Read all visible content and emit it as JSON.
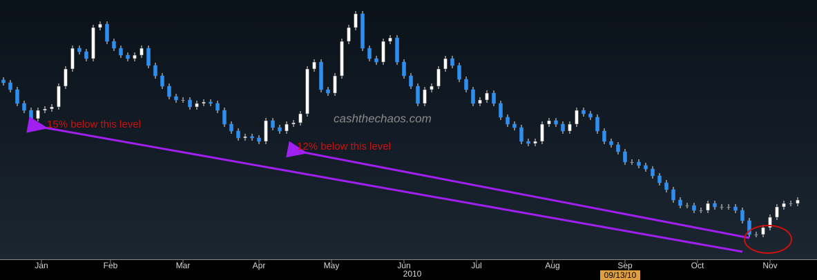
{
  "chart_data": {
    "type": "candlestick",
    "open": [
      290,
      286,
      276,
      256,
      246,
      234,
      246,
      248,
      251,
      281,
      306,
      336,
      331,
      321,
      366,
      371,
      346,
      336,
      326,
      321,
      326,
      336,
      311,
      296,
      281,
      266,
      261,
      261,
      251,
      256,
      258,
      256,
      246,
      226,
      216,
      206,
      208,
      206,
      201,
      231,
      221,
      216,
      226,
      228,
      241,
      306,
      316,
      276,
      271,
      296,
      346,
      366,
      386,
      336,
      321,
      316,
      346,
      351,
      316,
      296,
      281,
      256,
      276,
      281,
      306,
      321,
      311,
      291,
      276,
      256,
      261,
      271,
      256,
      236,
      226,
      221,
      201,
      198,
      201,
      226,
      231,
      226,
      216,
      226,
      246,
      241,
      236,
      216,
      201,
      196,
      186,
      171,
      171,
      166,
      161,
      151,
      141,
      131,
      116,
      108,
      108,
      101,
      101,
      111,
      106,
      106,
      106,
      101,
      86,
      66,
      66,
      76,
      91,
      106,
      111,
      111
    ],
    "high": [
      294,
      290,
      280,
      260,
      250,
      250,
      252,
      255,
      285,
      310,
      340,
      340,
      335,
      370,
      375,
      375,
      350,
      340,
      330,
      330,
      340,
      340,
      315,
      300,
      285,
      270,
      265,
      265,
      260,
      262,
      262,
      260,
      250,
      230,
      220,
      212,
      212,
      210,
      235,
      235,
      225,
      230,
      232,
      245,
      310,
      320,
      320,
      280,
      300,
      350,
      370,
      390,
      390,
      340,
      325,
      350,
      355,
      355,
      320,
      300,
      285,
      280,
      285,
      310,
      325,
      325,
      315,
      295,
      280,
      265,
      275,
      275,
      260,
      240,
      230,
      225,
      205,
      205,
      230,
      235,
      235,
      230,
      230,
      250,
      250,
      245,
      240,
      220,
      205,
      200,
      190,
      175,
      175,
      170,
      165,
      155,
      145,
      135,
      120,
      112,
      112,
      105,
      115,
      115,
      110,
      110,
      110,
      105,
      90,
      70,
      80,
      95,
      110,
      115,
      115,
      120
    ],
    "low": [
      282,
      272,
      252,
      242,
      230,
      230,
      242,
      244,
      247,
      277,
      302,
      327,
      317,
      317,
      362,
      342,
      332,
      322,
      317,
      317,
      322,
      307,
      292,
      277,
      262,
      257,
      257,
      247,
      247,
      252,
      252,
      242,
      222,
      212,
      202,
      202,
      202,
      197,
      197,
      217,
      212,
      212,
      222,
      224,
      237,
      302,
      272,
      267,
      267,
      292,
      342,
      362,
      332,
      317,
      312,
      312,
      342,
      312,
      292,
      277,
      252,
      252,
      272,
      277,
      302,
      307,
      287,
      272,
      252,
      252,
      257,
      252,
      232,
      222,
      217,
      197,
      194,
      194,
      197,
      222,
      222,
      212,
      212,
      222,
      237,
      232,
      212,
      197,
      192,
      182,
      167,
      167,
      162,
      157,
      147,
      137,
      127,
      112,
      104,
      104,
      97,
      97,
      97,
      102,
      102,
      102,
      97,
      82,
      62,
      62,
      62,
      72,
      87,
      102,
      107,
      107
    ],
    "close": [
      286,
      276,
      256,
      246,
      234,
      246,
      248,
      251,
      281,
      306,
      336,
      331,
      321,
      366,
      371,
      346,
      336,
      326,
      321,
      326,
      336,
      311,
      296,
      281,
      266,
      261,
      261,
      251,
      256,
      258,
      256,
      246,
      226,
      216,
      206,
      208,
      206,
      201,
      231,
      221,
      216,
      226,
      228,
      241,
      306,
      316,
      276,
      271,
      296,
      346,
      366,
      386,
      336,
      321,
      316,
      346,
      351,
      316,
      296,
      281,
      256,
      276,
      281,
      306,
      321,
      311,
      291,
      276,
      256,
      261,
      271,
      256,
      236,
      226,
      221,
      201,
      198,
      201,
      226,
      231,
      226,
      216,
      226,
      246,
      241,
      236,
      216,
      201,
      196,
      186,
      171,
      171,
      166,
      161,
      151,
      141,
      131,
      116,
      108,
      108,
      101,
      101,
      111,
      106,
      106,
      106,
      101,
      86,
      66,
      66,
      76,
      91,
      106,
      111,
      111,
      116
    ],
    "up_color": "#ffffff",
    "down_color": "#2f8ff0",
    "xticks": [
      {
        "value": 5.5,
        "label": "Jan"
      },
      {
        "value": 15.5,
        "label": "Feb"
      },
      {
        "value": 26,
        "label": "Mar"
      },
      {
        "value": 37,
        "label": "Apr"
      },
      {
        "value": 47.5,
        "label": "May"
      },
      {
        "value": 58,
        "label": "Jun"
      },
      {
        "value": 68.5,
        "label": "Jul"
      },
      {
        "value": 79.5,
        "label": "Aug"
      },
      {
        "value": 90,
        "label": "Sep"
      },
      {
        "value": 100.5,
        "label": "Oct"
      },
      {
        "value": 111,
        "label": "Nov"
      }
    ],
    "year_label": "2010",
    "date_marker": "09/13/10",
    "annotations": [
      "15% below this level",
      "12% below this level"
    ],
    "watermark": "cashthechaos.com"
  }
}
